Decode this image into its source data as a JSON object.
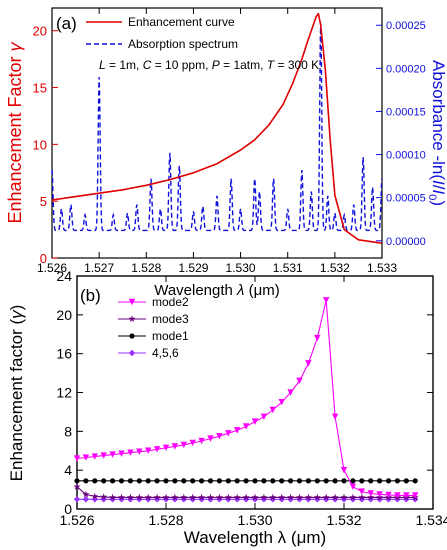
{
  "chart_data": [
    {
      "panel_label": "(a)",
      "type": "line",
      "xlabel_parts": [
        "Wavelength ",
        "λ",
        " (",
        "μ",
        "m)"
      ],
      "ylabel_left_parts": [
        "Enhancement Factor ",
        "γ"
      ],
      "ylabel_right_parts": [
        "Absorbance -ln(",
        "I",
        "/",
        "I",
        "0",
        ")"
      ],
      "xlim": [
        1.526,
        1.533
      ],
      "ylim_left": [
        0,
        22
      ],
      "ylim_right": [
        -2e-05,
        0.00027
      ],
      "x_ticks": [
        "1.526",
        "1.527",
        "1.528",
        "1.529",
        "1.530",
        "1.531",
        "1.532",
        "1.533"
      ],
      "y_left_ticks": [
        "0",
        "5",
        "10",
        "15",
        "20"
      ],
      "y_right_ticks": [
        "0.00000",
        "0.00005",
        "0.00010",
        "0.00015",
        "0.00020",
        "0.00025"
      ],
      "legend_position": "top-center",
      "annotation_parts": [
        "L",
        " = 1m, ",
        "C",
        " = 10 ppm, ",
        "P",
        " = 1atm, ",
        "T",
        " = 300 K"
      ],
      "colors": {
        "enhancement": "#e00000",
        "absorption": "#1010dd",
        "left_axis": "#e00000",
        "right_axis": "#1010dd"
      },
      "series": [
        {
          "name": "Enhancement curve",
          "axis": "left",
          "style": "solid",
          "x": [
            1.526,
            1.5265,
            1.527,
            1.5275,
            1.528,
            1.5285,
            1.529,
            1.5295,
            1.53,
            1.5303,
            1.5306,
            1.5309,
            1.5311,
            1.5313,
            1.5314,
            1.5315,
            1.5316,
            1.53165,
            1.5317,
            1.5318,
            1.5319,
            1.532,
            1.5322,
            1.5325,
            1.533
          ],
          "y": [
            5.1,
            5.4,
            5.7,
            6.0,
            6.4,
            6.9,
            7.5,
            8.3,
            9.5,
            10.4,
            11.7,
            13.5,
            15.3,
            17.5,
            18.8,
            20.0,
            21.2,
            21.5,
            20.5,
            16.5,
            10.5,
            5.5,
            2.5,
            1.6,
            1.3
          ]
        },
        {
          "name": "Absorption spectrum",
          "axis": "right",
          "style": "dashed",
          "baseline": 1.2e-05,
          "peaks": [
            {
              "x": 1.526,
              "h": 7e-05,
              "w": 3e-05
            },
            {
              "x": 1.5262,
              "h": 2.5e-05,
              "w": 3e-05
            },
            {
              "x": 1.5264,
              "h": 3e-05,
              "w": 3e-05
            },
            {
              "x": 1.5267,
              "h": 1.8e-05,
              "w": 3e-05
            },
            {
              "x": 1.527,
              "h": 0.000178,
              "w": 3e-05
            },
            {
              "x": 1.5273,
              "h": 1.8e-05,
              "w": 3e-05
            },
            {
              "x": 1.5276,
              "h": 2e-05,
              "w": 3e-05
            },
            {
              "x": 1.5278,
              "h": 3e-05,
              "w": 3e-05
            },
            {
              "x": 1.5281,
              "h": 6e-05,
              "w": 3e-05
            },
            {
              "x": 1.5283,
              "h": 2.5e-05,
              "w": 3e-05
            },
            {
              "x": 1.5285,
              "h": 9e-05,
              "w": 3e-05
            },
            {
              "x": 1.5287,
              "h": 7.5e-05,
              "w": 3e-05
            },
            {
              "x": 1.529,
              "h": 2.2e-05,
              "w": 3e-05
            },
            {
              "x": 1.5292,
              "h": 2.8e-05,
              "w": 3e-05
            },
            {
              "x": 1.5295,
              "h": 4e-05,
              "w": 3e-05
            },
            {
              "x": 1.5298,
              "h": 6e-05,
              "w": 3e-05
            },
            {
              "x": 1.53,
              "h": 2.5e-05,
              "w": 3e-05
            },
            {
              "x": 1.5303,
              "h": 6e-05,
              "w": 3e-05
            },
            {
              "x": 1.5304,
              "h": 4.5e-05,
              "w": 3e-05
            },
            {
              "x": 1.5307,
              "h": 6e-05,
              "w": 3e-05
            },
            {
              "x": 1.531,
              "h": 2.5e-05,
              "w": 3e-05
            },
            {
              "x": 1.5313,
              "h": 7e-05,
              "w": 3e-05
            },
            {
              "x": 1.5315,
              "h": 4.5e-05,
              "w": 3e-05
            },
            {
              "x": 1.5317,
              "h": 0.00024,
              "w": 3e-05
            },
            {
              "x": 1.53185,
              "h": 4e-05,
              "w": 3e-05
            },
            {
              "x": 1.532,
              "h": 2e-05,
              "w": 3e-05
            },
            {
              "x": 1.5322,
              "h": 1.8e-05,
              "w": 3e-05
            },
            {
              "x": 1.5324,
              "h": 3e-05,
              "w": 3e-05
            },
            {
              "x": 1.5326,
              "h": 8.5e-05,
              "w": 3e-05
            },
            {
              "x": 1.5328,
              "h": 5e-05,
              "w": 3e-05
            },
            {
              "x": 1.533,
              "h": 6e-05,
              "w": 3e-05
            }
          ]
        }
      ]
    },
    {
      "panel_label": "(b)",
      "type": "line",
      "xlabel_parts": [
        "Wavelength ",
        "λ",
        " (",
        "μ",
        "m)"
      ],
      "ylabel_parts": [
        "Enhancement factor (",
        "γ",
        ")"
      ],
      "xlim": [
        1.526,
        1.534
      ],
      "ylim": [
        0,
        24
      ],
      "x_ticks": [
        "1.526",
        "1.528",
        "1.530",
        "1.532",
        "1.534"
      ],
      "y_ticks": [
        "0",
        "4",
        "8",
        "12",
        "16",
        "20",
        "24"
      ],
      "legend_position": "top-left",
      "series": [
        {
          "name": "mode2",
          "color": "#ff00ff",
          "marker": "triangle-down",
          "x": [
            1.526,
            1.5262,
            1.5264,
            1.5266,
            1.5268,
            1.527,
            1.5272,
            1.5274,
            1.5276,
            1.5278,
            1.528,
            1.5282,
            1.5284,
            1.5286,
            1.5288,
            1.529,
            1.5292,
            1.5294,
            1.5296,
            1.5298,
            1.53,
            1.5302,
            1.5304,
            1.5306,
            1.5308,
            1.531,
            1.5312,
            1.5314,
            1.5316,
            1.5318,
            1.532,
            1.5322,
            1.5324,
            1.5326,
            1.5328,
            1.533,
            1.5332,
            1.5334,
            1.5336
          ],
          "y": [
            5.2,
            5.3,
            5.4,
            5.5,
            5.6,
            5.7,
            5.8,
            5.9,
            6.0,
            6.15,
            6.3,
            6.45,
            6.6,
            6.8,
            7.0,
            7.25,
            7.5,
            7.8,
            8.1,
            8.5,
            9.0,
            9.5,
            10.2,
            11.0,
            12.0,
            13.2,
            15.0,
            17.6,
            21.5,
            9.5,
            4.0,
            2.3,
            1.8,
            1.6,
            1.5,
            1.45,
            1.4,
            1.4,
            1.4
          ]
        },
        {
          "name": "mode3",
          "color": "#6a0080",
          "marker": "star",
          "x": [
            1.526,
            1.5262,
            1.5264,
            1.5266,
            1.5268,
            1.527,
            1.5272,
            1.5274,
            1.5276,
            1.5278,
            1.528,
            1.5282,
            1.5284,
            1.5286,
            1.5288,
            1.529,
            1.5292,
            1.5294,
            1.5296,
            1.5298,
            1.53,
            1.5302,
            1.5304,
            1.5306,
            1.5308,
            1.531,
            1.5312,
            1.5314,
            1.5316,
            1.5318,
            1.532,
            1.5322,
            1.5324,
            1.5326,
            1.5328,
            1.533,
            1.5332,
            1.5334,
            1.5336
          ],
          "y": [
            2.3,
            1.5,
            1.3,
            1.25,
            1.2,
            1.2,
            1.2,
            1.2,
            1.2,
            1.2,
            1.2,
            1.2,
            1.2,
            1.2,
            1.2,
            1.2,
            1.2,
            1.2,
            1.2,
            1.2,
            1.2,
            1.2,
            1.2,
            1.2,
            1.2,
            1.2,
            1.2,
            1.2,
            1.2,
            1.2,
            1.2,
            1.2,
            1.2,
            1.2,
            1.2,
            1.2,
            1.2,
            1.2,
            1.2
          ]
        },
        {
          "name": "mode1",
          "color": "#000000",
          "marker": "circle",
          "x": [
            1.526,
            1.5262,
            1.5264,
            1.5266,
            1.5268,
            1.527,
            1.5272,
            1.5274,
            1.5276,
            1.5278,
            1.528,
            1.5282,
            1.5284,
            1.5286,
            1.5288,
            1.529,
            1.5292,
            1.5294,
            1.5296,
            1.5298,
            1.53,
            1.5302,
            1.5304,
            1.5306,
            1.5308,
            1.531,
            1.5312,
            1.5314,
            1.5316,
            1.5318,
            1.532,
            1.5322,
            1.5324,
            1.5326,
            1.5328,
            1.533,
            1.5332,
            1.5334,
            1.5336
          ],
          "y": [
            2.9,
            2.9,
            2.9,
            2.9,
            2.9,
            2.9,
            2.9,
            2.9,
            2.9,
            2.9,
            2.9,
            2.9,
            2.9,
            2.9,
            2.9,
            2.9,
            2.9,
            2.9,
            2.9,
            2.9,
            2.9,
            2.9,
            2.9,
            2.9,
            2.9,
            2.9,
            2.9,
            2.9,
            2.9,
            2.9,
            2.9,
            2.9,
            2.9,
            2.9,
            2.9,
            2.9,
            2.9,
            2.9,
            2.9
          ]
        },
        {
          "name": "4,5,6",
          "color": "#9b30ff",
          "marker": "diamond",
          "x": [
            1.526,
            1.5262,
            1.5264,
            1.5266,
            1.5268,
            1.527,
            1.5272,
            1.5274,
            1.5276,
            1.5278,
            1.528,
            1.5282,
            1.5284,
            1.5286,
            1.5288,
            1.529,
            1.5292,
            1.5294,
            1.5296,
            1.5298,
            1.53,
            1.5302,
            1.5304,
            1.5306,
            1.5308,
            1.531,
            1.5312,
            1.5314,
            1.5316,
            1.5318,
            1.532,
            1.5322,
            1.5324,
            1.5326,
            1.5328,
            1.533,
            1.5332,
            1.5334,
            1.5336
          ],
          "y": [
            1.0,
            1.0,
            1.0,
            1.0,
            1.0,
            1.0,
            1.0,
            1.0,
            1.0,
            1.0,
            1.0,
            1.0,
            1.0,
            1.0,
            1.0,
            1.0,
            1.0,
            1.0,
            1.0,
            1.0,
            1.0,
            1.0,
            1.0,
            1.0,
            1.0,
            1.0,
            1.0,
            1.0,
            1.0,
            1.0,
            1.0,
            1.0,
            1.0,
            1.0,
            1.0,
            1.0,
            1.0,
            1.0,
            1.0
          ]
        }
      ]
    }
  ]
}
